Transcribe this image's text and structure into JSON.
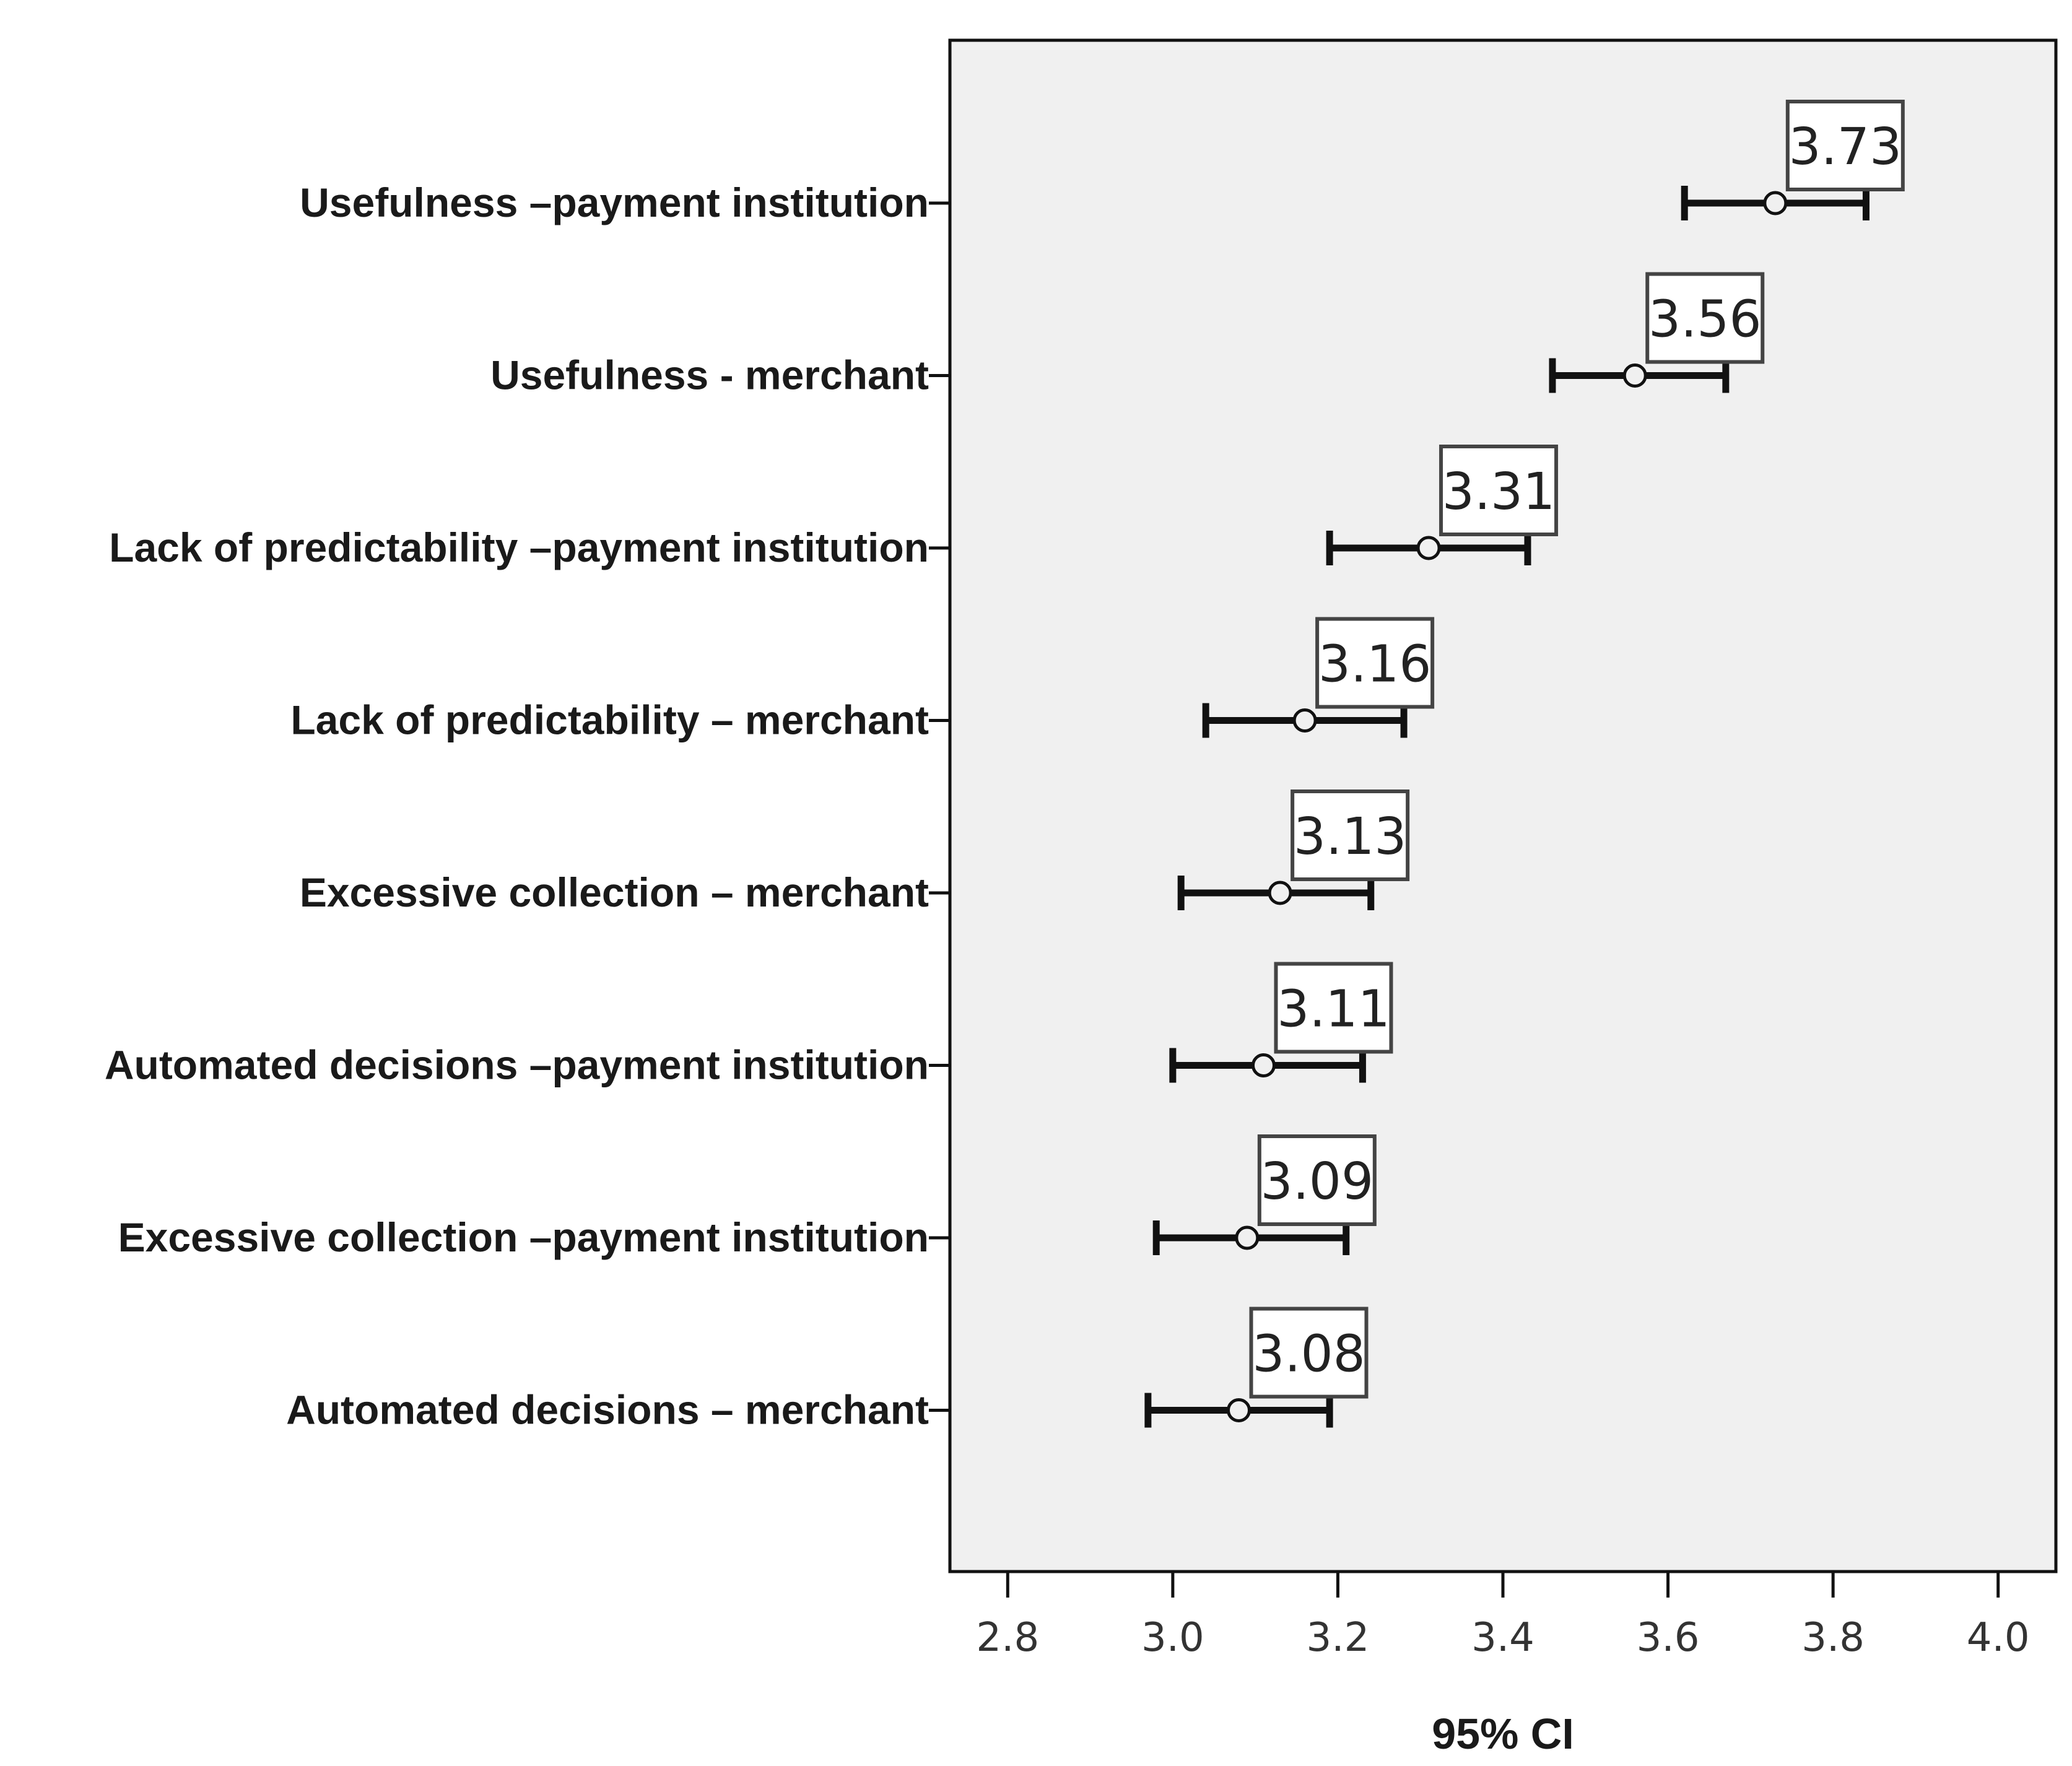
{
  "chart_data": {
    "type": "scatter",
    "orientation": "horizontal",
    "xlabel": "95% CI",
    "xlim": [
      2.73,
      4.07
    ],
    "x_ticks": [
      2.8,
      3.0,
      3.2,
      3.4,
      3.6,
      3.8,
      4.0
    ],
    "x_tick_labels": [
      "2.8",
      "3.0",
      "3.2",
      "3.4",
      "3.6",
      "3.8",
      "4.0"
    ],
    "grid": false,
    "categories": [
      "Usefulness –payment institution",
      "Usefulness - merchant",
      "Lack of predictability –payment institution",
      "Lack of predictability – merchant",
      "Excessive collection – merchant",
      "Automated decisions –payment institution",
      "Excessive collection –payment institution",
      "Automated decisions – merchant"
    ],
    "means": [
      3.73,
      3.56,
      3.31,
      3.16,
      3.13,
      3.11,
      3.09,
      3.08
    ],
    "mean_labels": [
      "3.73",
      "3.56",
      "3.31",
      "3.16",
      "3.13",
      "3.11",
      "3.09",
      "3.08"
    ],
    "ci_lower": [
      3.62,
      3.46,
      3.19,
      3.04,
      3.01,
      3.0,
      2.98,
      2.97
    ],
    "ci_upper": [
      3.84,
      3.67,
      3.43,
      3.28,
      3.24,
      3.23,
      3.21,
      3.19
    ]
  }
}
